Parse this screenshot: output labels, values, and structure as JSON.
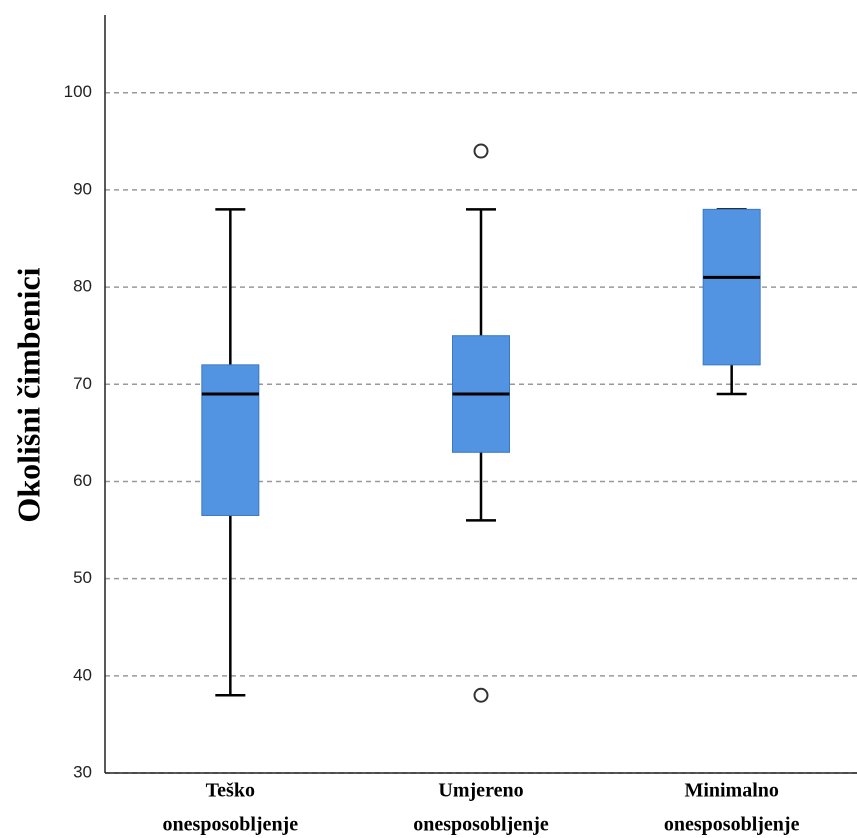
{
  "chart_data": {
    "type": "box",
    "y_label": "Okolišni čimbenici",
    "categories": [
      [
        "Teško",
        "onesposobljenje"
      ],
      [
        "Umjereno",
        "onesposobljenje"
      ],
      [
        "Minimalno",
        "onesposobljenje"
      ]
    ],
    "boxes": [
      {
        "min": 38,
        "q1": 56.5,
        "median": 69,
        "q3": 72,
        "max": 88,
        "outliers": []
      },
      {
        "min": 56,
        "q1": 63,
        "median": 69,
        "q3": 75,
        "max": 88,
        "outliers": [
          94,
          38
        ]
      },
      {
        "min": 69,
        "q1": 72,
        "median": 81,
        "q3": 88,
        "max": 88,
        "outliers": []
      }
    ],
    "color": "#5294e2",
    "ylim": [
      30,
      108
    ],
    "yticks": [
      30,
      40,
      50,
      60,
      70,
      80,
      90,
      100
    ],
    "grid": true
  }
}
